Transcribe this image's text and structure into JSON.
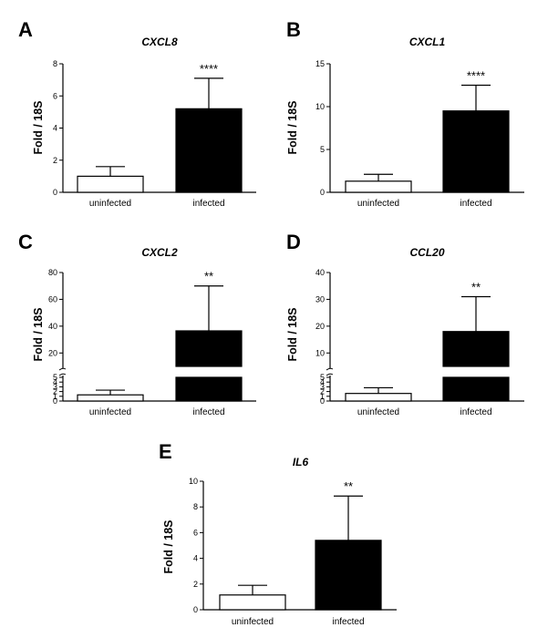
{
  "figure": {
    "categories": [
      "uninfected",
      "infected"
    ]
  },
  "chart_data": [
    {
      "type": "bar",
      "panel": "A",
      "title": "CXCL8",
      "ylabel": "Fold / 18S",
      "xlabel": "",
      "categories": [
        "uninfected",
        "infected"
      ],
      "values": [
        1.0,
        5.2
      ],
      "errors": [
        0.6,
        1.9
      ],
      "ylim": [
        0,
        8
      ],
      "yticks": [
        0,
        2,
        4,
        6,
        8
      ],
      "significance": "****",
      "bar_colors": [
        "#ffffff",
        "#000000"
      ]
    },
    {
      "type": "bar",
      "panel": "B",
      "title": "CXCL1",
      "ylabel": "Fold / 18S",
      "xlabel": "",
      "categories": [
        "uninfected",
        "infected"
      ],
      "values": [
        1.3,
        9.5
      ],
      "errors": [
        0.8,
        3.0
      ],
      "ylim": [
        0,
        15
      ],
      "yticks": [
        0,
        5,
        10,
        15
      ],
      "significance": "****",
      "bar_colors": [
        "#ffffff",
        "#000000"
      ]
    },
    {
      "type": "bar",
      "panel": "C",
      "title": "CXCL2",
      "ylabel": "Fold / 18S",
      "xlabel": "",
      "categories": [
        "uninfected",
        "infected"
      ],
      "values": [
        1.3,
        36.5
      ],
      "errors": [
        1.0,
        33.5
      ],
      "broken_axis": {
        "lower": [
          0,
          5
        ],
        "upper": [
          10,
          80
        ]
      },
      "yticks_lower": [
        0,
        1,
        2,
        3,
        4,
        5
      ],
      "yticks_upper": [
        20,
        40,
        60,
        80
      ],
      "significance": "**",
      "bar_colors": [
        "#ffffff",
        "#000000"
      ]
    },
    {
      "type": "bar",
      "panel": "D",
      "title": "CCL20",
      "ylabel": "Fold / 18S",
      "xlabel": "",
      "categories": [
        "uninfected",
        "infected"
      ],
      "values": [
        1.6,
        18.0
      ],
      "errors": [
        1.2,
        13.0
      ],
      "broken_axis": {
        "lower": [
          0,
          5
        ],
        "upper": [
          5,
          40
        ]
      },
      "yticks_lower": [
        0,
        1,
        2,
        3,
        4,
        5
      ],
      "yticks_upper": [
        10,
        20,
        30,
        40
      ],
      "significance": "**",
      "bar_colors": [
        "#ffffff",
        "#000000"
      ]
    },
    {
      "type": "bar",
      "panel": "E",
      "title": "IL6",
      "ylabel": "Fold / 18S",
      "xlabel": "",
      "categories": [
        "uninfected",
        "infected"
      ],
      "values": [
        1.15,
        5.4
      ],
      "errors": [
        0.75,
        3.45
      ],
      "ylim": [
        0,
        10
      ],
      "yticks": [
        0,
        2,
        4,
        6,
        8,
        10
      ],
      "significance": "**",
      "bar_colors": [
        "#ffffff",
        "#000000"
      ]
    }
  ]
}
